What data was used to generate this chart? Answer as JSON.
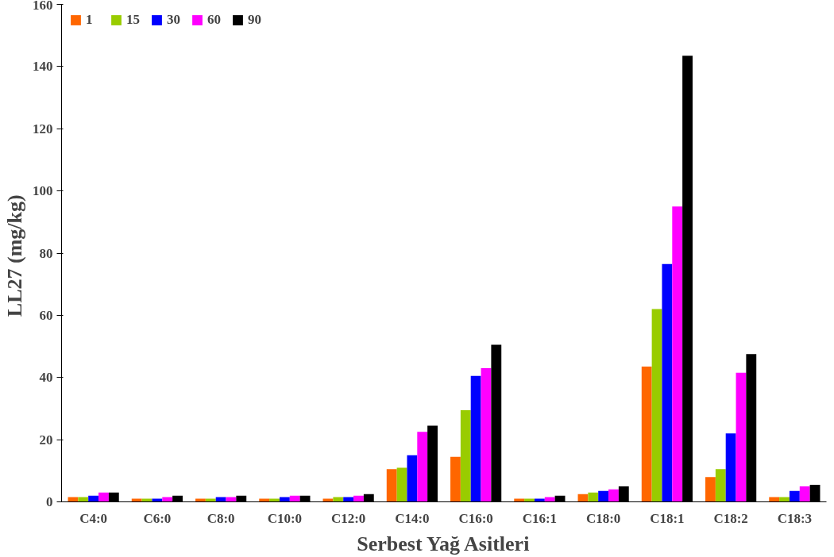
{
  "chart_data": {
    "type": "bar",
    "xlabel": "Serbest Yağ Asitleri",
    "ylabel": "LL27  (mg/kg)",
    "categories": [
      "C4:0",
      "C6:0",
      "C8:0",
      "C10:0",
      "C12:0",
      "C14:0",
      "C16:0",
      "C16:1",
      "C18:0",
      "C18:1",
      "C18:2",
      "C18:3"
    ],
    "series": [
      {
        "name": "1",
        "color": "#ff6600",
        "values": [
          1.5,
          1,
          1,
          1,
          1,
          10.5,
          14.5,
          1,
          2.5,
          43.5,
          8,
          1.5
        ]
      },
      {
        "name": "15",
        "color": "#99cc00",
        "values": [
          1.5,
          1,
          1,
          1,
          1.5,
          11,
          29.5,
          1,
          3,
          62,
          10.5,
          1.5
        ]
      },
      {
        "name": "30",
        "color": "#0000ff",
        "values": [
          2,
          1,
          1.5,
          1.5,
          1.5,
          15,
          40.5,
          1,
          3.5,
          76.5,
          22,
          3.5
        ]
      },
      {
        "name": "60",
        "color": "#ff00ff",
        "values": [
          3,
          1.5,
          1.5,
          2,
          2,
          22.5,
          43,
          1.5,
          4,
          95,
          41.5,
          5
        ]
      },
      {
        "name": "90",
        "color": "#000000",
        "values": [
          3,
          2,
          2,
          2,
          2.5,
          24.5,
          50.5,
          2,
          5,
          143.5,
          47.5,
          5.5
        ]
      }
    ],
    "ylim": [
      0,
      160
    ],
    "yticks": [
      0,
      20,
      40,
      60,
      80,
      100,
      120,
      140,
      160
    ],
    "grid": false,
    "legend": "top left"
  }
}
